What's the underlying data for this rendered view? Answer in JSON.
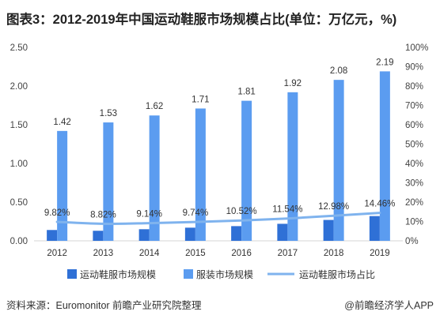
{
  "title": "图表3：2012-2019年中国运动鞋服市场规模占比(单位：万亿元，%)",
  "chart_data": {
    "type": "bar",
    "categories": [
      "2012",
      "2013",
      "2014",
      "2015",
      "2016",
      "2017",
      "2018",
      "2019"
    ],
    "series": [
      {
        "name": "运动鞋服市场规模",
        "type": "bar",
        "axis": "left",
        "color": "#2f70d6",
        "values": [
          0.14,
          0.13,
          0.15,
          0.17,
          0.19,
          0.22,
          0.27,
          0.32
        ]
      },
      {
        "name": "服装市场规模",
        "type": "bar",
        "axis": "left",
        "color": "#5b9cf0",
        "values": [
          1.42,
          1.53,
          1.62,
          1.71,
          1.81,
          1.92,
          2.08,
          2.19
        ],
        "labels": [
          "1.42",
          "1.53",
          "1.62",
          "1.71",
          "1.81",
          "1.92",
          "2.08",
          "2.19"
        ]
      },
      {
        "name": "运动鞋服市场占比",
        "type": "line",
        "axis": "right",
        "color": "#7fb3ee",
        "values": [
          9.82,
          8.82,
          9.14,
          9.74,
          10.52,
          11.54,
          12.98,
          14.46
        ],
        "labels": [
          "9.82%",
          "8.82%",
          "9.14%",
          "9.74%",
          "10.52%",
          "11.54%",
          "12.98%",
          "14.46%"
        ]
      }
    ],
    "y_left": {
      "range": [
        0,
        2.5
      ],
      "tick_labels": [
        "0.00",
        "0.50",
        "1.00",
        "1.50",
        "2.00",
        "2.50"
      ]
    },
    "y_right": {
      "range": [
        0,
        100
      ],
      "tick_labels": [
        "0%",
        "10%",
        "20%",
        "30%",
        "40%",
        "50%",
        "60%",
        "70%",
        "80%",
        "90%",
        "100%"
      ]
    },
    "grid": false,
    "legend": "bottom"
  },
  "source": "资料来源：Euromonitor 前瞻产业研究院整理",
  "credit": "@前瞻经济学人APP"
}
